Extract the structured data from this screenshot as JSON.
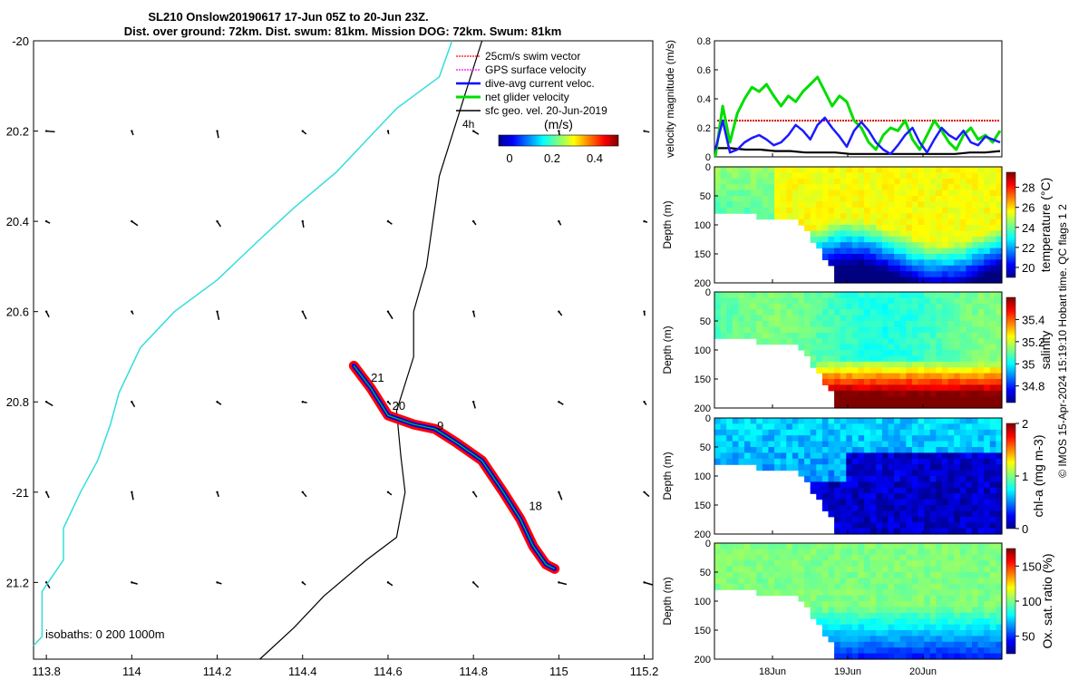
{
  "title": {
    "line1": "SL210 Onslow20190617 17-Jun 05Z to 20-Jun 23Z.",
    "line2": "Dist. over ground: 72km. Dist. swum: 81km. Mission DOG: 72km. Swum: 81km"
  },
  "map": {
    "x_ticks": [
      113.8,
      114,
      114.2,
      114.4,
      114.6,
      114.8,
      115,
      115.2
    ],
    "x_tick_labels": [
      "113.8",
      "114",
      "114.2",
      "114.4",
      "114.6",
      "114.8",
      "115",
      "115.2"
    ],
    "y_ticks": [
      -20,
      -20.2,
      -20.4,
      -20.6,
      -20.8,
      -21,
      -21.2
    ],
    "y_tick_labels": [
      "-20",
      "20.2",
      "20.4",
      "20.6",
      "20.8",
      "-21",
      "21.2"
    ],
    "xlim": [
      113.77,
      115.22
    ],
    "ylim": [
      -21.37,
      -20.0
    ],
    "legend": [
      {
        "label": "25cm/s swim vector",
        "color": "#ff0000"
      },
      {
        "label": "GPS surface velocity",
        "color": "#ff00ff"
      },
      {
        "label": "dive-avg current veloc.",
        "color": "#0000ff"
      },
      {
        "label": "net glider velocity",
        "color": "#00dd00"
      },
      {
        "label": "sfc geo. vel. 20-Jun-2019",
        "color": "#000000"
      }
    ],
    "scale_label": "4h",
    "colorbar": {
      "label": "(m/s)",
      "ticks": [
        "0",
        "0.2",
        "0.4"
      ],
      "range": [
        -0.05,
        0.5
      ]
    },
    "isobath_label": "isobaths: 0   200  1000m",
    "day_labels": [
      {
        "text": "21",
        "lon": 114.56,
        "lat": -20.755
      },
      {
        "text": "20",
        "lon": 114.61,
        "lat": -20.818
      },
      {
        "text": "9",
        "lon": 114.715,
        "lat": -20.862
      },
      {
        "text": "18",
        "lon": 114.93,
        "lat": -21.04
      }
    ],
    "coast_line": [
      [
        114.75,
        -20.0
      ],
      [
        114.72,
        -20.08
      ],
      [
        114.62,
        -20.15
      ],
      [
        114.55,
        -20.22
      ],
      [
        114.48,
        -20.29
      ],
      [
        114.38,
        -20.37
      ],
      [
        114.3,
        -20.44
      ],
      [
        114.2,
        -20.53
      ],
      [
        114.1,
        -20.6
      ],
      [
        114.02,
        -20.68
      ],
      [
        113.97,
        -20.78
      ],
      [
        113.95,
        -20.85
      ],
      [
        113.92,
        -20.93
      ],
      [
        113.88,
        -21.0
      ],
      [
        113.84,
        -21.08
      ],
      [
        113.84,
        -21.15
      ],
      [
        113.79,
        -21.22
      ],
      [
        113.79,
        -21.32
      ],
      [
        113.77,
        -21.34
      ]
    ],
    "isobath_200": [
      [
        114.82,
        -20.0
      ],
      [
        114.78,
        -20.12
      ],
      [
        114.72,
        -20.3
      ],
      [
        114.69,
        -20.5
      ],
      [
        114.66,
        -20.6
      ],
      [
        114.66,
        -20.7
      ],
      [
        114.62,
        -20.82
      ],
      [
        114.63,
        -20.92
      ],
      [
        114.64,
        -21.0
      ],
      [
        114.62,
        -21.1
      ],
      [
        114.55,
        -21.15
      ],
      [
        114.45,
        -21.23
      ],
      [
        114.38,
        -21.3
      ],
      [
        114.3,
        -21.37
      ]
    ],
    "track": [
      [
        114.52,
        -20.72
      ],
      [
        114.56,
        -20.77
      ],
      [
        114.6,
        -20.83
      ],
      [
        114.66,
        -20.85
      ],
      [
        114.71,
        -20.86
      ],
      [
        114.76,
        -20.89
      ],
      [
        114.82,
        -20.93
      ],
      [
        114.87,
        -21.0
      ],
      [
        114.91,
        -21.06
      ],
      [
        114.94,
        -21.12
      ],
      [
        114.97,
        -21.16
      ],
      [
        114.99,
        -21.17
      ]
    ],
    "vector_grid_lons": [
      113.8,
      114.0,
      114.2,
      114.4,
      114.6,
      114.8,
      115.0,
      115.2
    ],
    "vector_grid_lats": [
      -20.2,
      -20.4,
      -20.6,
      -20.8,
      -21.0,
      -21.2
    ]
  },
  "panels": {
    "velocity": {
      "ylabel": "velocity magnitude (m/s)",
      "y_ticks": [
        "0",
        "0.2",
        "0.4",
        "0.6",
        "0.8"
      ],
      "ylim": [
        0,
        0.8
      ],
      "swim_speed": 0.25,
      "net_velocity": [
        0.0,
        0.35,
        0.1,
        0.3,
        0.4,
        0.48,
        0.45,
        0.5,
        0.42,
        0.35,
        0.42,
        0.38,
        0.45,
        0.5,
        0.55,
        0.45,
        0.35,
        0.42,
        0.38,
        0.25,
        0.2,
        0.1,
        0.05,
        0.15,
        0.2,
        0.18,
        0.25,
        0.12,
        0.05,
        0.15,
        0.25,
        0.18,
        0.1,
        0.05,
        0.15,
        0.2,
        0.12,
        0.15,
        0.1,
        0.18
      ],
      "current_velocity": [
        0.05,
        0.25,
        0.03,
        0.05,
        0.1,
        0.13,
        0.15,
        0.12,
        0.08,
        0.1,
        0.15,
        0.22,
        0.18,
        0.12,
        0.22,
        0.27,
        0.2,
        0.14,
        0.07,
        0.18,
        0.24,
        0.18,
        0.1,
        0.05,
        0.02,
        0.08,
        0.15,
        0.2,
        0.1,
        0.03,
        0.12,
        0.2,
        0.15,
        0.12,
        0.18,
        0.1,
        0.08,
        0.14,
        0.12,
        0.1
      ],
      "geo_velocity": [
        0.06,
        0.06,
        0.05,
        0.05,
        0.04,
        0.04,
        0.03,
        0.03,
        0.03,
        0.02,
        0.02,
        0.02,
        0.02,
        0.02,
        0.02,
        0.02,
        0.02,
        0.03,
        0.03,
        0.04
      ]
    },
    "temperature": {
      "cbar_label": "temperature (°C)",
      "cbar_ticks": [
        "20",
        "22",
        "24",
        "26",
        "28"
      ],
      "range": [
        19,
        29.5
      ]
    },
    "salinity": {
      "cbar_label": "salinity",
      "cbar_ticks": [
        "34.8",
        "35",
        "35.2",
        "35.4"
      ],
      "range": [
        34.65,
        35.6
      ]
    },
    "chla": {
      "cbar_label": "chl-a (mg m-3)",
      "cbar_ticks": [
        "0",
        "1",
        "2"
      ],
      "range": [
        0,
        2
      ]
    },
    "oxygen": {
      "cbar_label": "Ox. sat. ratio (%)",
      "cbar_ticks": [
        "50",
        "100",
        "150"
      ],
      "range": [
        25,
        175
      ]
    },
    "depth_label": "Depth (m)",
    "depth_ticks": [
      "0",
      "50",
      "100",
      "150",
      "200"
    ],
    "time_ticks": [
      "18Jun",
      "19Jun",
      "20Jun"
    ]
  },
  "credit": "© IMOS 15-Apr-2024 15:19:10 Hobart time. QC flags 1  2"
}
